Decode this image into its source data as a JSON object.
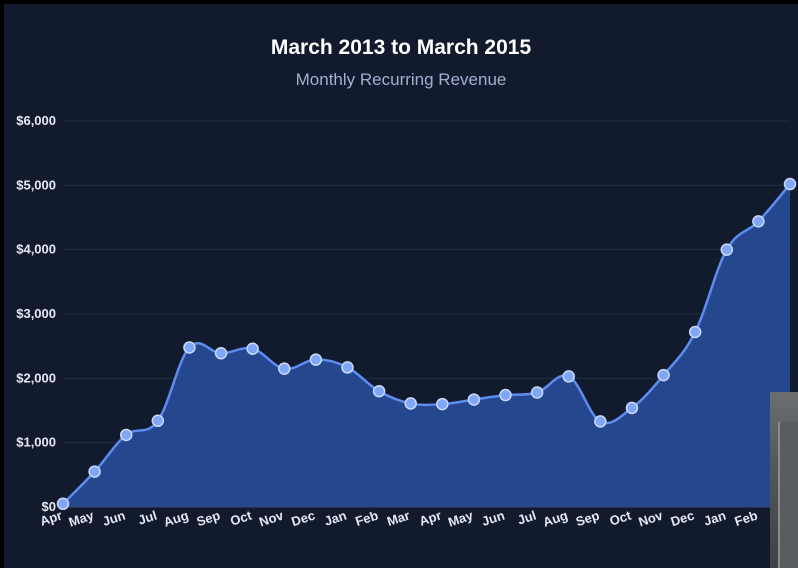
{
  "chart_data": {
    "type": "area",
    "title": "March 2013 to March 2015",
    "subtitle": "Monthly Recurring Revenue",
    "xlabel": "",
    "ylabel": "",
    "categories": [
      "Apr",
      "May",
      "Jun",
      "Jul",
      "Aug",
      "Sep",
      "Oct",
      "Nov",
      "Dec",
      "Jan",
      "Feb",
      "Mar",
      "Apr",
      "May",
      "Jun",
      "Jul",
      "Aug",
      "Sep",
      "Oct",
      "Nov",
      "Dec",
      "Jan",
      "Feb",
      "M"
    ],
    "series": [
      {
        "values": [
          50,
          550,
          1120,
          1340,
          2480,
          2390,
          2460,
          2150,
          2290,
          2170,
          1800,
          1610,
          1600,
          1670,
          1740,
          1780,
          2030,
          1330,
          1540,
          2050,
          2720,
          4000,
          4440,
          5020
        ]
      }
    ],
    "ylim": [
      0,
      6000
    ],
    "yticks": [
      0,
      1000,
      2000,
      3000,
      4000,
      5000,
      6000
    ],
    "ytick_labels": [
      "$0",
      "$1,000",
      "$2,000",
      "$3,000",
      "$4,000",
      "$5,000",
      "$6,000"
    ],
    "grid": true,
    "colors": {
      "background": "#121a2d",
      "area_fill": "#274a94",
      "line": "#5d8df0",
      "marker_fill": "#7fa6f7",
      "marker_stroke": "#c9d9fb",
      "grid": "#222c44"
    }
  }
}
